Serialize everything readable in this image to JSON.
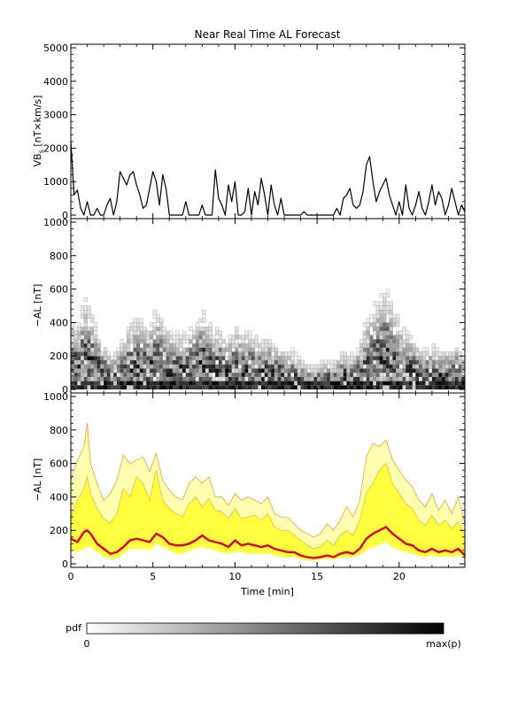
{
  "chart_data": [
    {
      "type": "line",
      "title": "Near Real Time AL Forecast",
      "ylabel_main": "VB",
      "ylabel_sub": "s",
      "ylabel_rest": " [nT×km/s]",
      "ylim": [
        0,
        5000
      ],
      "yticks": [
        "0",
        "1000",
        "2000",
        "3000",
        "4000",
        "5000"
      ],
      "xlim": [
        0,
        24
      ],
      "color": "#000000",
      "x": [
        0,
        0.2,
        0.4,
        0.6,
        0.8,
        1.0,
        1.2,
        1.4,
        1.6,
        1.8,
        2.0,
        2.2,
        2.4,
        2.6,
        2.8,
        3.0,
        3.2,
        3.4,
        3.6,
        3.8,
        4.0,
        4.2,
        4.4,
        4.6,
        4.8,
        5.0,
        5.2,
        5.4,
        5.6,
        5.8,
        6.0,
        6.2,
        6.4,
        6.6,
        6.8,
        7.0,
        7.2,
        7.4,
        7.6,
        7.8,
        8.0,
        8.2,
        8.4,
        8.6,
        8.8,
        9.0,
        9.2,
        9.4,
        9.6,
        9.8,
        10.0,
        10.2,
        10.4,
        10.6,
        10.8,
        11.0,
        11.2,
        11.4,
        11.6,
        11.8,
        12.0,
        12.2,
        12.4,
        12.6,
        12.8,
        13.0,
        13.2,
        13.4,
        13.6,
        13.8,
        14.0,
        14.2,
        14.4,
        14.6,
        14.8,
        15.0,
        15.2,
        15.4,
        15.6,
        15.8,
        16.0,
        16.2,
        16.4,
        16.6,
        16.8,
        17.0,
        17.2,
        17.4,
        17.6,
        17.8,
        18.0,
        18.2,
        18.4,
        18.6,
        18.8,
        19.0,
        19.2,
        19.4,
        19.6,
        19.8,
        20.0,
        20.2,
        20.4,
        20.6,
        20.8,
        21.0,
        21.2,
        21.4,
        21.6,
        21.8,
        22.0,
        22.2,
        22.4,
        22.6,
        22.8,
        23.0,
        23.2,
        23.4,
        23.6,
        23.8,
        24.0
      ],
      "values": [
        2200,
        600,
        750,
        200,
        0,
        400,
        0,
        0,
        200,
        0,
        0,
        300,
        500,
        0,
        400,
        1300,
        1100,
        900,
        1200,
        1300,
        900,
        600,
        200,
        300,
        800,
        1300,
        1000,
        300,
        1200,
        800,
        0,
        0,
        0,
        0,
        0,
        400,
        0,
        0,
        0,
        0,
        300,
        0,
        0,
        0,
        1350,
        500,
        300,
        0,
        900,
        400,
        1000,
        0,
        0,
        100,
        800,
        0,
        700,
        300,
        1100,
        600,
        0,
        900,
        300,
        0,
        500,
        0,
        0,
        0,
        0,
        0,
        0,
        100,
        0,
        0,
        0,
        0,
        0,
        0,
        0,
        0,
        0,
        200,
        0,
        500,
        600,
        800,
        300,
        200,
        300,
        700,
        1500,
        1750,
        1000,
        400,
        700,
        900,
        1100,
        600,
        300,
        0,
        400,
        0,
        900,
        200,
        0,
        300,
        700,
        200,
        0,
        400,
        900,
        300,
        700,
        500,
        0,
        300,
        800,
        400,
        0,
        300,
        100
      ]
    },
    {
      "type": "heatmap",
      "ylabel": "−AL [nT]",
      "ylim": [
        0,
        1000
      ],
      "yticks": [
        "0",
        "200",
        "400",
        "600",
        "800",
        "1000"
      ],
      "xlim": [
        0,
        24
      ],
      "cell_x": 0.2,
      "cell_y": 25,
      "scale": "white-to-black pdf"
    },
    {
      "type": "area",
      "ylabel": "−AL [nT]",
      "ylim": [
        0,
        1000
      ],
      "yticks": [
        "0",
        "200",
        "400",
        "600",
        "800",
        "1000"
      ],
      "xlim": [
        0,
        24
      ],
      "xticks": [
        "0",
        "5",
        "10",
        "15",
        "20"
      ],
      "xlabel": "Time [min]",
      "colors": {
        "band_outer": "#ffffb0",
        "band_inner": "#ffff40",
        "band_edge": "#f5a030",
        "median": "#e00000"
      },
      "x": [
        0,
        0.4,
        0.8,
        1.0,
        1.2,
        1.6,
        2.0,
        2.4,
        2.8,
        3.2,
        3.6,
        4.0,
        4.4,
        4.8,
        5.2,
        5.6,
        6.0,
        6.4,
        6.8,
        7.2,
        7.6,
        8.0,
        8.4,
        8.8,
        9.2,
        9.6,
        10.0,
        10.4,
        10.8,
        11.2,
        11.6,
        12.0,
        12.4,
        12.8,
        13.2,
        13.6,
        14.0,
        14.4,
        14.8,
        15.2,
        15.6,
        16.0,
        16.4,
        16.8,
        17.2,
        17.6,
        18.0,
        18.4,
        18.8,
        19.2,
        19.6,
        20.0,
        20.4,
        20.8,
        21.2,
        21.6,
        22.0,
        22.4,
        22.8,
        23.2,
        23.6,
        24.0
      ],
      "median": [
        150,
        130,
        190,
        200,
        180,
        120,
        90,
        60,
        70,
        100,
        140,
        150,
        140,
        130,
        180,
        160,
        120,
        110,
        110,
        120,
        140,
        170,
        140,
        130,
        120,
        100,
        140,
        110,
        120,
        110,
        100,
        110,
        90,
        80,
        70,
        70,
        50,
        40,
        35,
        40,
        50,
        40,
        60,
        70,
        60,
        90,
        150,
        180,
        200,
        220,
        180,
        150,
        120,
        110,
        80,
        70,
        90,
        70,
        80,
        70,
        90,
        50
      ],
      "band_low": [
        80,
        70,
        90,
        100,
        100,
        70,
        40,
        30,
        30,
        60,
        90,
        90,
        90,
        80,
        120,
        100,
        80,
        60,
        60,
        80,
        90,
        100,
        90,
        80,
        70,
        60,
        70,
        70,
        60,
        60,
        60,
        60,
        50,
        40,
        40,
        40,
        30,
        20,
        20,
        25,
        30,
        25,
        35,
        40,
        40,
        50,
        80,
        100,
        110,
        130,
        100,
        80,
        70,
        60,
        45,
        40,
        50,
        40,
        45,
        40,
        50,
        30
      ],
      "band_high": [
        280,
        380,
        450,
        520,
        420,
        330,
        270,
        240,
        300,
        450,
        400,
        520,
        480,
        380,
        560,
        380,
        330,
        300,
        280,
        360,
        400,
        340,
        390,
        320,
        310,
        270,
        330,
        270,
        280,
        290,
        260,
        300,
        220,
        200,
        200,
        170,
        140,
        110,
        90,
        100,
        140,
        110,
        170,
        200,
        170,
        260,
        430,
        480,
        560,
        600,
        480,
        420,
        360,
        330,
        260,
        230,
        290,
        230,
        260,
        210,
        250,
        170
      ],
      "upper_peak": [
        500,
        620,
        700,
        840,
        600,
        480,
        380,
        420,
        500,
        650,
        600,
        620,
        640,
        550,
        660,
        500,
        440,
        400,
        380,
        480,
        520,
        480,
        520,
        400,
        400,
        350,
        420,
        380,
        400,
        380,
        360,
        400,
        300,
        280,
        280,
        240,
        200,
        180,
        160,
        180,
        240,
        200,
        260,
        340,
        280,
        380,
        640,
        720,
        700,
        740,
        620,
        560,
        500,
        460,
        380,
        340,
        420,
        320,
        380,
        300,
        400,
        240
      ]
    }
  ],
  "colorbar": {
    "label": "pdf",
    "min_label": "0",
    "max_label": "max(p)"
  }
}
